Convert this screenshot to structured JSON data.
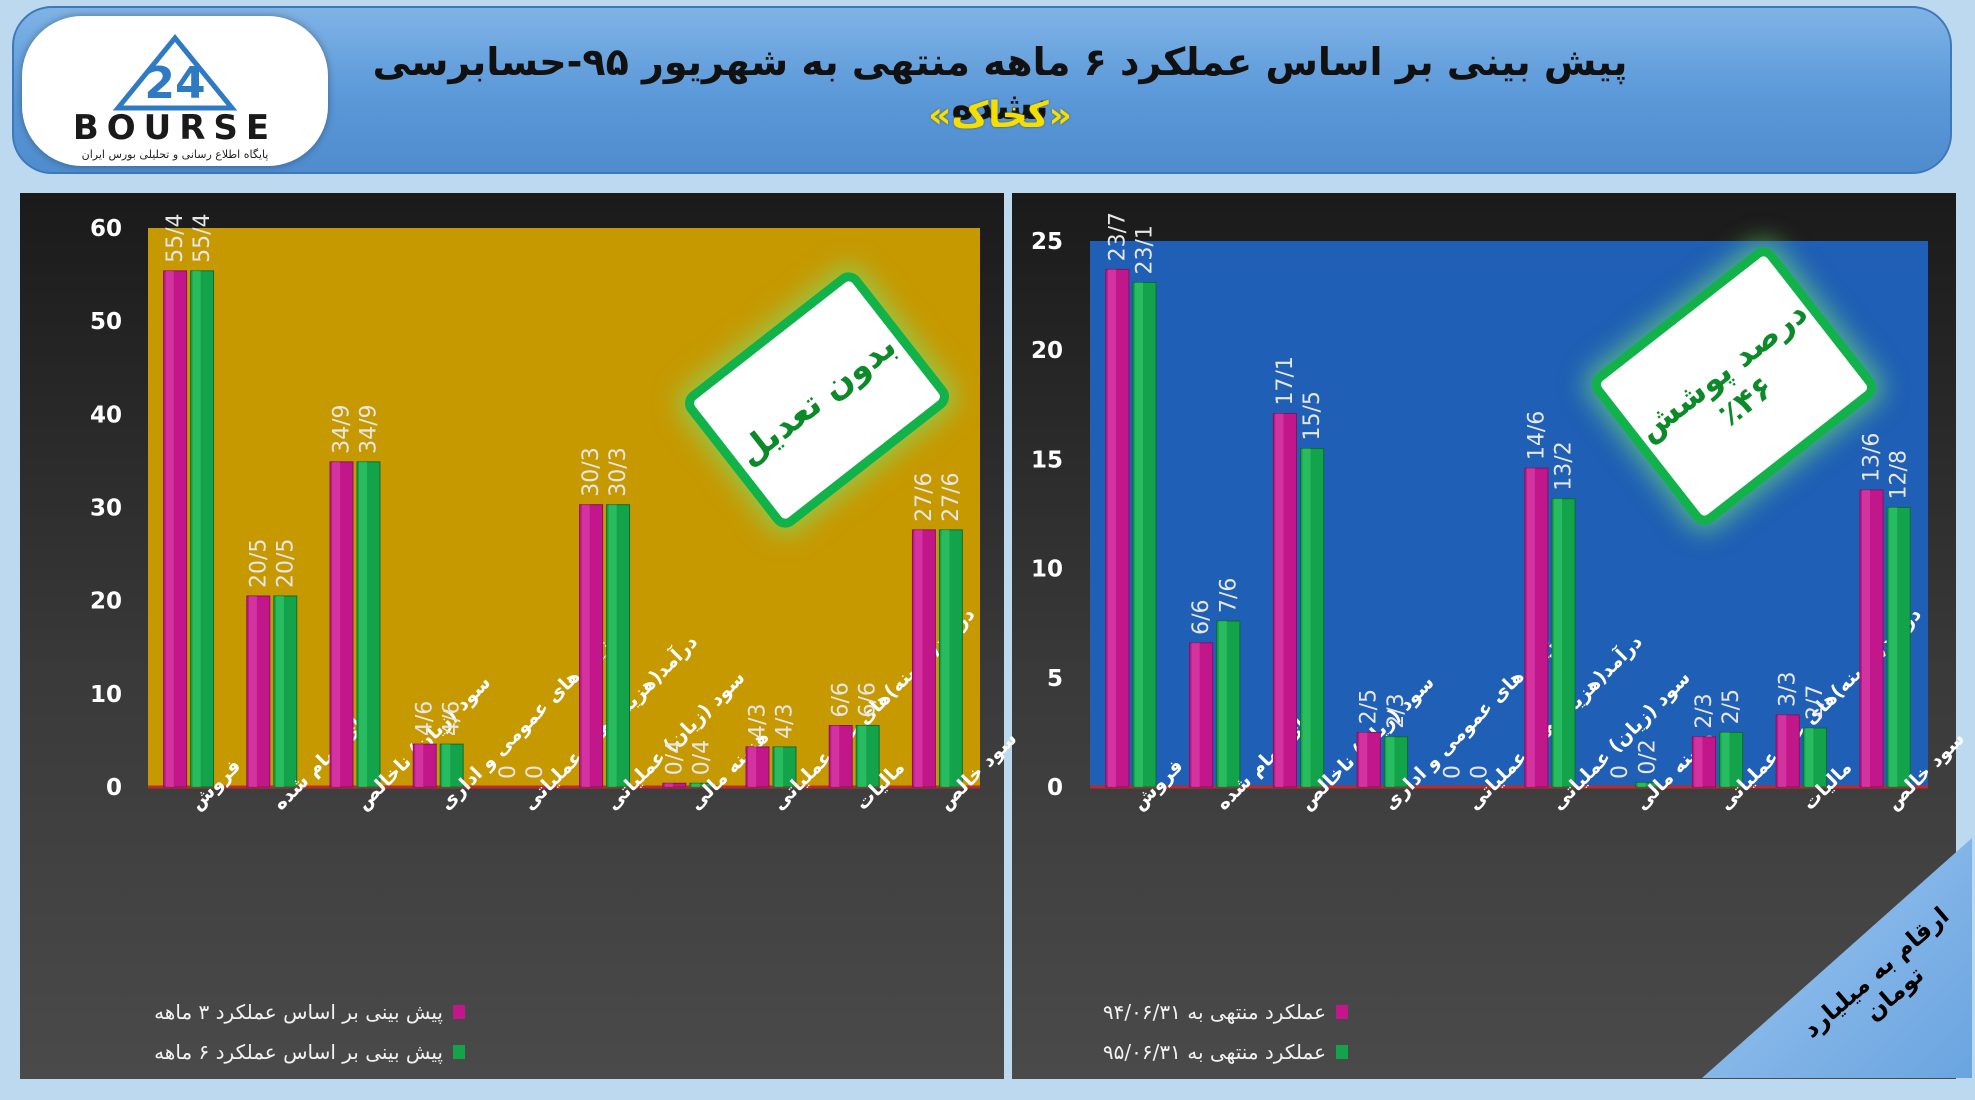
{
  "header": {
    "title_line1": "پیش بینی بر اساس عملکرد ۶ ماهه منتهی به شهریور ۹۵-حسابرسی نشده",
    "title_line2": "«کخاک»",
    "logo_text": "BOURSE",
    "logo_number": "24",
    "logo_subtitle": "پایگاه اطلاع رسانی و تحلیلی بورس ایران"
  },
  "colors": {
    "series_a": "#c2178a",
    "series_b": "#13a34a",
    "left_bg": "#c79900",
    "right_bg": "#1f5fb5",
    "badge_green": "#12b24a"
  },
  "left_badge": "بدون تعدیل",
  "right_badge": {
    "line1": "درصد پوشش",
    "line2": "٪۴۶"
  },
  "units_note": "ارقام به میلیارد تومان",
  "chart_data": [
    {
      "type": "bar",
      "categories": [
        "فروش",
        "بهای تمام شده",
        "سود (زیان) ناخالص",
        "هزینه های عمومی و اداری",
        "درآمد(هزینه)های عملیاتی",
        "سود (زیان) عملیاتی",
        "هزینه مالی",
        "درآمد(هزینه)های غیر عملیاتی",
        "مالیات",
        "سود خالص"
      ],
      "series": [
        {
          "name": "پیش بینی بر اساس عملکرد ۳ ماهه",
          "values": [
            55.4,
            20.5,
            34.9,
            4.6,
            0,
            30.3,
            0.4,
            4.3,
            6.6,
            27.6
          ],
          "labels": [
            "55/4",
            "20/5",
            "34/9",
            "4/6",
            "0",
            "30/3",
            "0/4",
            "4/3",
            "6/6",
            "27/6"
          ]
        },
        {
          "name": "پیش بینی بر اساس عملکرد ۶ ماهه",
          "values": [
            55.4,
            20.5,
            34.9,
            4.6,
            0,
            30.3,
            0.4,
            4.3,
            6.6,
            27.6
          ],
          "labels": [
            "55/4",
            "20/5",
            "34/9",
            "4/6",
            "0",
            "30/3",
            "0/4",
            "4/3",
            "6/6",
            "27/6"
          ]
        }
      ],
      "ylim": [
        0,
        60
      ],
      "yticks": [
        "0",
        "10",
        "20",
        "30",
        "40",
        "50",
        "60"
      ],
      "legend": "bottom"
    },
    {
      "type": "bar",
      "categories": [
        "فروش",
        "بهای تمام شده",
        "سود (زیان) ناخالص",
        "هزینه های عمومی و اداری",
        "درآمد(هزینه)های عملیاتی",
        "سود (زیان) عملیاتی",
        "هزینه مالی",
        "درآمد(هزینه)های غیر عملیاتی",
        "مالیات",
        "سود خالص"
      ],
      "series": [
        {
          "name": "عملکرد منتهی به ۹۴/۰۶/۳۱",
          "values": [
            23.7,
            6.6,
            17.1,
            2.5,
            0,
            14.6,
            0,
            2.3,
            3.3,
            13.6
          ],
          "labels": [
            "23/7",
            "6/6",
            "17/1",
            "2/5",
            "0",
            "14/6",
            "0",
            "2/3",
            "3/3",
            "13/6"
          ]
        },
        {
          "name": "عملکرد منتهی به ۹۵/۰۶/۳۱",
          "values": [
            23.1,
            7.6,
            15.5,
            2.3,
            0,
            13.2,
            0.2,
            2.5,
            2.7,
            12.8
          ],
          "labels": [
            "23/1",
            "7/6",
            "15/5",
            "2/3",
            "0",
            "13/2",
            "0/2",
            "2/5",
            "2/7",
            "12/8"
          ]
        }
      ],
      "ylim": [
        0,
        25
      ],
      "yticks": [
        "0",
        "5",
        "10",
        "15",
        "20",
        "25"
      ],
      "legend": "bottom"
    }
  ]
}
